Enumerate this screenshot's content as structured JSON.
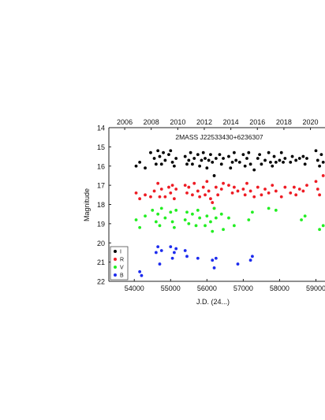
{
  "chart_data": {
    "type": "scatter",
    "title": "2MASS J22533430+6236307",
    "xlabel": "J.D. (24...)",
    "ylabel": "Magnitude",
    "xlim": [
      53300,
      59250
    ],
    "ylim": [
      22,
      14
    ],
    "y_inverted": true,
    "x_ticks": [
      54000,
      55000,
      56000,
      57000,
      58000,
      59000
    ],
    "x_tick_labels": [
      "54000",
      "55000",
      "56000",
      "57000",
      "58000",
      "59000"
    ],
    "y_ticks": [
      14,
      15,
      16,
      17,
      18,
      19,
      20,
      21,
      22
    ],
    "y_tick_labels": [
      "14",
      "15",
      "16",
      "17",
      "18",
      "19",
      "20",
      "21",
      "22"
    ],
    "top_axis": {
      "labels": [
        "2006",
        "2008",
        "2010",
        "2012",
        "2014",
        "2016",
        "2018",
        "2020"
      ],
      "jd": [
        53736,
        54466,
        55197,
        55927,
        56658,
        57388,
        58119,
        58849
      ]
    },
    "legend_position": "bottom-left",
    "series": [
      {
        "name": "I",
        "color": "#000000",
        "points": [
          [
            54050,
            16.0
          ],
          [
            54150,
            15.8
          ],
          [
            54300,
            16.1
          ],
          [
            54450,
            15.3
          ],
          [
            54550,
            15.6
          ],
          [
            54600,
            15.9
          ],
          [
            54650,
            15.2
          ],
          [
            54700,
            15.5
          ],
          [
            54750,
            15.9
          ],
          [
            54800,
            15.3
          ],
          [
            54850,
            15.7
          ],
          [
            54950,
            15.4
          ],
          [
            55000,
            15.2
          ],
          [
            55050,
            15.8
          ],
          [
            55100,
            16.0
          ],
          [
            55150,
            15.6
          ],
          [
            55400,
            15.5
          ],
          [
            55450,
            15.9
          ],
          [
            55500,
            15.7
          ],
          [
            55550,
            15.3
          ],
          [
            55600,
            15.9
          ],
          [
            55650,
            15.6
          ],
          [
            55750,
            15.4
          ],
          [
            55800,
            16.0
          ],
          [
            55850,
            15.7
          ],
          [
            55900,
            15.3
          ],
          [
            55950,
            15.6
          ],
          [
            56000,
            16.1
          ],
          [
            56050,
            15.7
          ],
          [
            56100,
            15.4
          ],
          [
            56150,
            15.8
          ],
          [
            56200,
            16.5
          ],
          [
            56250,
            15.6
          ],
          [
            56350,
            15.4
          ],
          [
            56400,
            15.9
          ],
          [
            56450,
            15.6
          ],
          [
            56600,
            15.5
          ],
          [
            56650,
            16.1
          ],
          [
            56700,
            15.8
          ],
          [
            56750,
            15.3
          ],
          [
            56800,
            15.7
          ],
          [
            56900,
            15.8
          ],
          [
            57000,
            15.4
          ],
          [
            57050,
            16.0
          ],
          [
            57100,
            15.6
          ],
          [
            57150,
            15.3
          ],
          [
            57200,
            15.9
          ],
          [
            57300,
            16.2
          ],
          [
            57400,
            15.6
          ],
          [
            57450,
            15.4
          ],
          [
            57500,
            15.9
          ],
          [
            57600,
            15.7
          ],
          [
            57700,
            15.3
          ],
          [
            57750,
            15.8
          ],
          [
            57800,
            16.0
          ],
          [
            57850,
            15.5
          ],
          [
            57900,
            15.8
          ],
          [
            58000,
            15.7
          ],
          [
            58050,
            15.3
          ],
          [
            58100,
            15.8
          ],
          [
            58150,
            15.6
          ],
          [
            58300,
            15.8
          ],
          [
            58350,
            15.5
          ],
          [
            58450,
            15.7
          ],
          [
            58550,
            15.6
          ],
          [
            58650,
            15.5
          ],
          [
            58700,
            15.9
          ],
          [
            58750,
            15.6
          ],
          [
            59000,
            15.2
          ],
          [
            59050,
            15.7
          ],
          [
            59100,
            16.0
          ],
          [
            59150,
            15.4
          ],
          [
            59200,
            15.8
          ]
        ]
      },
      {
        "name": "R",
        "color": "#ee1c24",
        "points": [
          [
            54050,
            17.4
          ],
          [
            54150,
            17.7
          ],
          [
            54300,
            17.5
          ],
          [
            54450,
            17.6
          ],
          [
            54550,
            17.3
          ],
          [
            54650,
            16.9
          ],
          [
            54700,
            17.6
          ],
          [
            54750,
            17.2
          ],
          [
            54850,
            17.6
          ],
          [
            54950,
            17.1
          ],
          [
            55000,
            17.4
          ],
          [
            55050,
            17.0
          ],
          [
            55100,
            17.7
          ],
          [
            55150,
            17.2
          ],
          [
            55400,
            17.0
          ],
          [
            55450,
            17.4
          ],
          [
            55500,
            17.1
          ],
          [
            55600,
            17.5
          ],
          [
            55650,
            16.9
          ],
          [
            55750,
            17.3
          ],
          [
            55800,
            17.6
          ],
          [
            55900,
            17.1
          ],
          [
            55950,
            17.5
          ],
          [
            56000,
            16.8
          ],
          [
            56050,
            17.3
          ],
          [
            56100,
            17.7
          ],
          [
            56150,
            17.9
          ],
          [
            56200,
            18.2
          ],
          [
            56250,
            17.1
          ],
          [
            56300,
            17.5
          ],
          [
            56400,
            17.2
          ],
          [
            56450,
            16.9
          ],
          [
            56600,
            17.0
          ],
          [
            56700,
            17.4
          ],
          [
            56750,
            17.1
          ],
          [
            56850,
            17.3
          ],
          [
            57000,
            17.2
          ],
          [
            57050,
            17.5
          ],
          [
            57100,
            16.9
          ],
          [
            57200,
            17.3
          ],
          [
            57300,
            17.6
          ],
          [
            57400,
            17.1
          ],
          [
            57500,
            17.5
          ],
          [
            57600,
            17.2
          ],
          [
            57700,
            17.4
          ],
          [
            57800,
            17.0
          ],
          [
            57900,
            17.3
          ],
          [
            58050,
            17.6
          ],
          [
            58150,
            17.1
          ],
          [
            58300,
            17.4
          ],
          [
            58400,
            17.1
          ],
          [
            58450,
            17.5
          ],
          [
            58550,
            17.2
          ],
          [
            58650,
            17.3
          ],
          [
            58750,
            17.0
          ],
          [
            59000,
            16.8
          ],
          [
            59050,
            17.2
          ],
          [
            59100,
            17.5
          ],
          [
            59200,
            16.5
          ]
        ]
      },
      {
        "name": "V",
        "color": "#22ee22",
        "points": [
          [
            54050,
            18.8
          ],
          [
            54150,
            19.2
          ],
          [
            54300,
            18.6
          ],
          [
            54500,
            18.3
          ],
          [
            54600,
            18.9
          ],
          [
            54650,
            18.5
          ],
          [
            54700,
            19.1
          ],
          [
            54750,
            18.2
          ],
          [
            54850,
            18.7
          ],
          [
            55000,
            18.4
          ],
          [
            55050,
            18.9
          ],
          [
            55100,
            19.2
          ],
          [
            55150,
            18.3
          ],
          [
            55400,
            18.8
          ],
          [
            55450,
            18.4
          ],
          [
            55500,
            19.0
          ],
          [
            55600,
            18.5
          ],
          [
            55700,
            19.1
          ],
          [
            55750,
            18.3
          ],
          [
            55800,
            18.7
          ],
          [
            55950,
            19.1
          ],
          [
            56000,
            18.6
          ],
          [
            56100,
            18.9
          ],
          [
            56150,
            19.4
          ],
          [
            56200,
            18.2
          ],
          [
            56250,
            18.7
          ],
          [
            56400,
            18.5
          ],
          [
            56450,
            19.3
          ],
          [
            56600,
            18.7
          ],
          [
            56750,
            19.1
          ],
          [
            57150,
            18.8
          ],
          [
            57250,
            18.4
          ],
          [
            57700,
            18.2
          ],
          [
            57900,
            18.3
          ],
          [
            58600,
            18.8
          ],
          [
            58700,
            18.6
          ],
          [
            59100,
            19.3
          ],
          [
            59200,
            19.1
          ]
        ]
      },
      {
        "name": "B",
        "color": "#1c2bee",
        "points": [
          [
            54150,
            21.5
          ],
          [
            54200,
            21.7
          ],
          [
            54600,
            20.5
          ],
          [
            54650,
            20.2
          ],
          [
            54700,
            21.1
          ],
          [
            54750,
            20.4
          ],
          [
            55000,
            20.2
          ],
          [
            55050,
            20.8
          ],
          [
            55100,
            20.5
          ],
          [
            55150,
            20.3
          ],
          [
            55400,
            20.4
          ],
          [
            55450,
            20.7
          ],
          [
            55750,
            20.8
          ],
          [
            56150,
            20.9
          ],
          [
            56200,
            21.3
          ],
          [
            56250,
            20.8
          ],
          [
            56850,
            21.1
          ],
          [
            57200,
            20.9
          ],
          [
            57250,
            20.7
          ]
        ]
      }
    ]
  }
}
